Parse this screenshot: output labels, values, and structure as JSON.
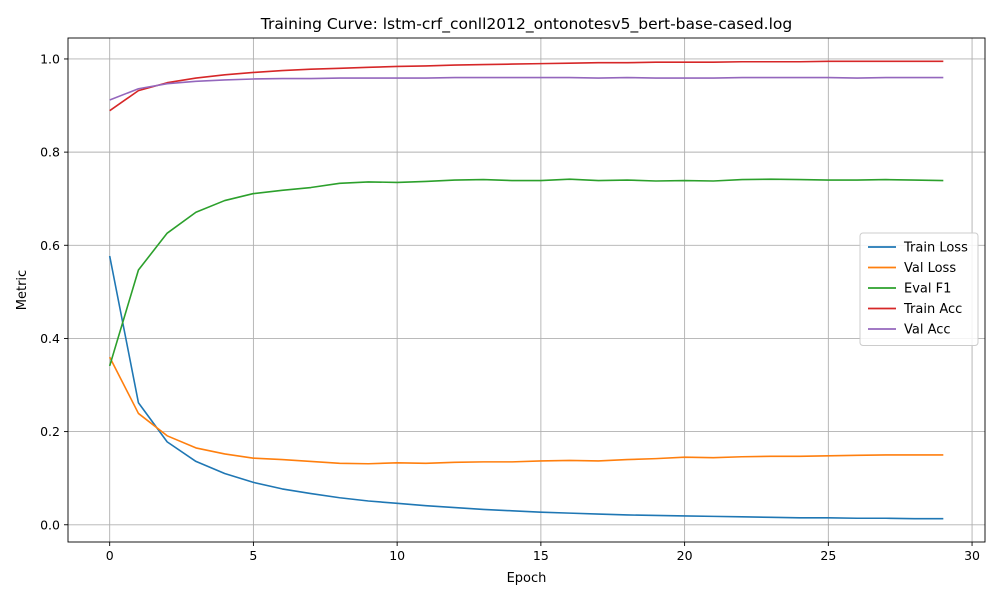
{
  "chart_data": {
    "type": "line",
    "title": "Training Curve: lstm-crf_conll2012_ontonotesv5_bert-base-cased.log",
    "xlabel": "Epoch",
    "ylabel": "Metric",
    "xlim": [
      -1.45,
      30.45
    ],
    "ylim": [
      -0.037,
      1.045
    ],
    "xticks": [
      0,
      5,
      10,
      15,
      20,
      25,
      30
    ],
    "xtick_labels": [
      "0",
      "5",
      "10",
      "15",
      "20",
      "25",
      "30"
    ],
    "yticks": [
      0.0,
      0.2,
      0.4,
      0.6,
      0.8,
      1.0
    ],
    "ytick_labels": [
      "0.0",
      "0.2",
      "0.4",
      "0.6",
      "0.8",
      "1.0"
    ],
    "grid": true,
    "legend_position": "center-right",
    "x": [
      0,
      1,
      2,
      3,
      4,
      5,
      6,
      7,
      8,
      9,
      10,
      11,
      12,
      13,
      14,
      15,
      16,
      17,
      18,
      19,
      20,
      21,
      22,
      23,
      24,
      25,
      26,
      27,
      28,
      29
    ],
    "series": [
      {
        "name": "Train Loss",
        "color": "#1f77b4",
        "values": [
          0.577,
          0.262,
          0.178,
          0.136,
          0.11,
          0.091,
          0.077,
          0.067,
          0.058,
          0.051,
          0.046,
          0.041,
          0.037,
          0.033,
          0.03,
          0.027,
          0.025,
          0.023,
          0.021,
          0.02,
          0.019,
          0.018,
          0.017,
          0.016,
          0.015,
          0.015,
          0.014,
          0.014,
          0.013,
          0.013
        ]
      },
      {
        "name": "Val Loss",
        "color": "#ff7f0e",
        "values": [
          0.36,
          0.239,
          0.191,
          0.165,
          0.152,
          0.143,
          0.14,
          0.136,
          0.132,
          0.131,
          0.133,
          0.132,
          0.134,
          0.135,
          0.135,
          0.137,
          0.138,
          0.137,
          0.14,
          0.142,
          0.145,
          0.144,
          0.146,
          0.147,
          0.147,
          0.148,
          0.149,
          0.15,
          0.15,
          0.15
        ]
      },
      {
        "name": "Eval F1",
        "color": "#2ca02c",
        "values": [
          0.341,
          0.547,
          0.626,
          0.671,
          0.696,
          0.711,
          0.718,
          0.724,
          0.733,
          0.736,
          0.735,
          0.737,
          0.74,
          0.741,
          0.739,
          0.739,
          0.742,
          0.739,
          0.74,
          0.738,
          0.739,
          0.738,
          0.741,
          0.742,
          0.741,
          0.74,
          0.74,
          0.741,
          0.74,
          0.739
        ]
      },
      {
        "name": "Train Acc",
        "color": "#d62728",
        "values": [
          0.889,
          0.932,
          0.949,
          0.959,
          0.966,
          0.971,
          0.975,
          0.978,
          0.98,
          0.982,
          0.984,
          0.985,
          0.987,
          0.988,
          0.989,
          0.99,
          0.991,
          0.992,
          0.992,
          0.993,
          0.993,
          0.993,
          0.994,
          0.994,
          0.994,
          0.995,
          0.995,
          0.995,
          0.995,
          0.995
        ]
      },
      {
        "name": "Val Acc",
        "color": "#9467bd",
        "values": [
          0.912,
          0.936,
          0.947,
          0.952,
          0.955,
          0.957,
          0.958,
          0.958,
          0.959,
          0.959,
          0.959,
          0.959,
          0.96,
          0.96,
          0.96,
          0.96,
          0.96,
          0.959,
          0.96,
          0.959,
          0.959,
          0.959,
          0.96,
          0.96,
          0.96,
          0.96,
          0.959,
          0.96,
          0.96,
          0.96
        ]
      }
    ]
  }
}
